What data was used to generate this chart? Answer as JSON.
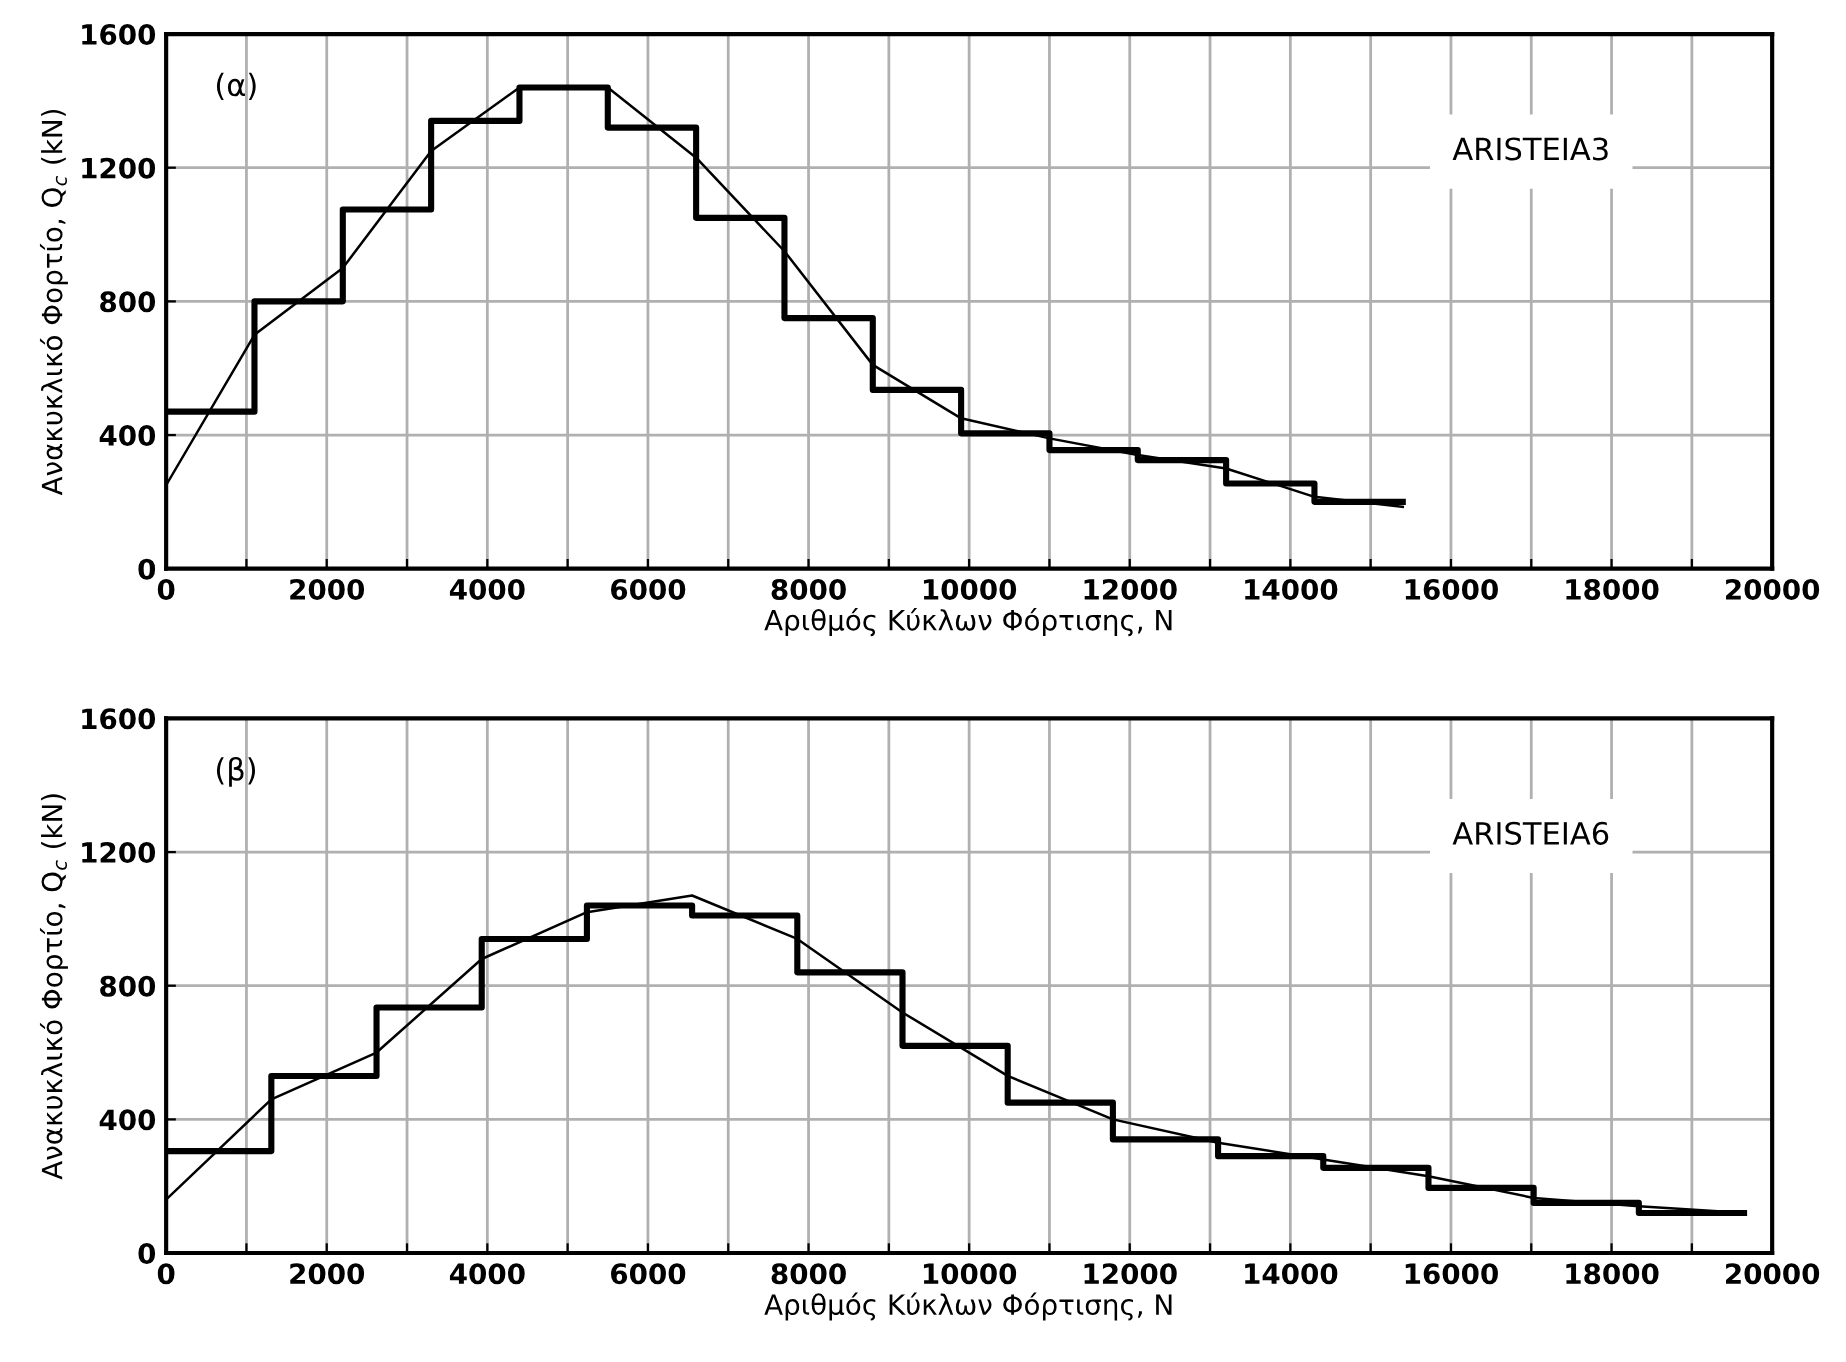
{
  "chart_data": [
    {
      "type": "line",
      "xlabel": "Αριθμός Κύκλων Φόρτισης, N",
      "ylabel": "Ανακυκλικό Φορτίο, Q$_{c}$ (kN)",
      "annotations": [
        "(α)",
        "ARISTEIA3"
      ],
      "xlim": [
        0,
        20000
      ],
      "ylim": [
        0,
        1600
      ],
      "xticks": [
        0,
        {
          "value": 1000,
          "label": null
        },
        2000,
        {
          "value": 3000,
          "label": null
        },
        4000,
        {
          "value": 5000,
          "label": null
        },
        6000,
        {
          "value": 7000,
          "label": null
        },
        8000,
        {
          "value": 9000,
          "label": null
        },
        10000,
        {
          "value": 11000,
          "label": null
        },
        12000,
        {
          "value": 13000,
          "label": null
        },
        14000,
        {
          "value": 15000,
          "label": null
        },
        16000,
        {
          "value": 17000,
          "label": null
        },
        18000,
        {
          "value": 19000,
          "label": null
        },
        20000
      ],
      "yticks": [
        0,
        400,
        800,
        1200,
        1600
      ],
      "grid": true,
      "legend": false,
      "series": [
        {
          "type": "step",
          "color": "#000000",
          "x": [
            0,
            1100,
            2200,
            3300,
            4400,
            5500,
            6600,
            7700,
            8800,
            9900,
            11000,
            12100,
            13200,
            14300,
            15400
          ],
          "values": [
            470,
            800,
            1075,
            1340,
            1440,
            1320,
            1050,
            750,
            535,
            405,
            355,
            325,
            255,
            200,
            200
          ]
        },
        {
          "color": "#000000",
          "x": [
            0,
            1100,
            2200,
            3300,
            4400,
            5500,
            6600,
            7700,
            8800,
            9900,
            11000,
            12100,
            13200,
            14300,
            15400
          ],
          "values": [
            250,
            700,
            900,
            1250,
            1440,
            1440,
            1230,
            950,
            610,
            450,
            390,
            340,
            300,
            215,
            185
          ]
        }
      ]
    },
    {
      "type": "line",
      "xlabel": "Αριθμός Κύκλων Φόρτισης, N",
      "ylabel": "Ανακυκλικό Φορτίο, Q$_{c}$ (kN)",
      "annotations": [
        "(β)",
        "ARISTEIA6"
      ],
      "xlim": [
        0,
        20000
      ],
      "ylim": [
        0,
        1600
      ],
      "xticks": [
        0,
        {
          "value": 1000,
          "label": null
        },
        2000,
        {
          "value": 3000,
          "label": null
        },
        4000,
        {
          "value": 5000,
          "label": null
        },
        6000,
        {
          "value": 7000,
          "label": null
        },
        8000,
        {
          "value": 9000,
          "label": null
        },
        10000,
        {
          "value": 11000,
          "label": null
        },
        12000,
        {
          "value": 13000,
          "label": null
        },
        14000,
        {
          "value": 15000,
          "label": null
        },
        16000,
        {
          "value": 17000,
          "label": null
        },
        18000,
        {
          "value": 19000,
          "label": null
        },
        20000
      ],
      "yticks": [
        0,
        400,
        800,
        1200,
        1600
      ],
      "grid": true,
      "legend": false,
      "series": [
        {
          "type": "step",
          "color": "#000000",
          "x": [
            0,
            1310,
            2620,
            3930,
            5240,
            6550,
            7860,
            9170,
            10480,
            11790,
            13100,
            14410,
            15720,
            17030,
            18340,
            19650
          ],
          "values": [
            305,
            530,
            735,
            940,
            1040,
            1010,
            840,
            620,
            450,
            340,
            290,
            255,
            195,
            150,
            120,
            120
          ]
        },
        {
          "color": "#000000",
          "x": [
            0,
            1310,
            2620,
            3930,
            5240,
            6550,
            7860,
            9170,
            10480,
            11790,
            13100,
            14410,
            15720,
            17030,
            18340,
            19650
          ],
          "values": [
            160,
            460,
            600,
            880,
            1020,
            1070,
            940,
            720,
            530,
            400,
            330,
            280,
            230,
            165,
            140,
            120
          ]
        }
      ]
    }
  ]
}
